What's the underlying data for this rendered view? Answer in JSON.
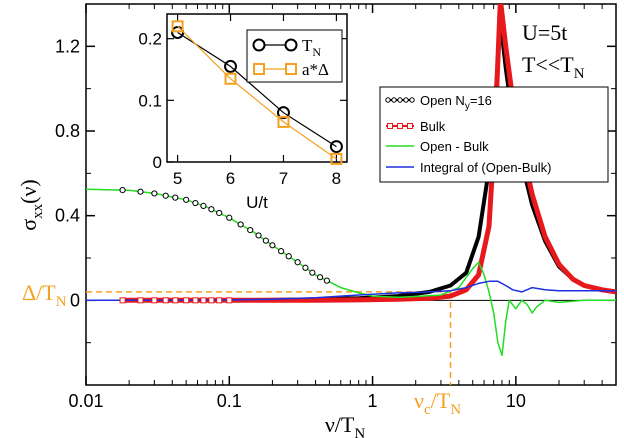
{
  "chart_data": {
    "type": "line",
    "x_scale": "log",
    "xlabel": "ν/T_N",
    "ylabel": "σ_xx(ν)",
    "xlim": [
      0.01,
      50
    ],
    "ylim": [
      -0.4,
      1.4
    ],
    "x_ticks": [
      {
        "value": 0.01,
        "label": "0.01"
      },
      {
        "value": 0.1,
        "label": "0.1"
      },
      {
        "value": 1,
        "label": "1"
      },
      {
        "value": 10,
        "label": "10"
      }
    ],
    "y_ticks": [
      {
        "value": 0,
        "label": "0"
      },
      {
        "value": 0.4,
        "label": "0.4"
      },
      {
        "value": 0.8,
        "label": "0.8"
      },
      {
        "value": 1.2,
        "label": "1.2"
      }
    ],
    "annotations": {
      "params_line1": "U=5t",
      "params_line2_main": "T<<T",
      "params_line2_sub": "N",
      "delta_main": "Δ/T",
      "delta_sub": "N",
      "nu_c_main": "ν",
      "nu_c_sub1": "c",
      "nu_c_mid": "/T",
      "nu_c_sub2": "N",
      "delta_value": 0.04,
      "nu_c_value": 3.5,
      "orange_color": "#f5a020"
    },
    "series": [
      {
        "name": "Open N_y=16",
        "color": "#000000",
        "x": [
          0.018,
          0.03,
          0.06,
          0.1,
          0.2,
          0.4,
          0.8,
          1.5,
          2.5,
          3.5,
          4.5,
          5.5,
          6.5,
          7.2,
          7.8,
          8.5,
          9.5,
          11,
          13,
          16,
          20,
          25,
          30,
          40,
          50
        ],
        "y": [
          0.0,
          0.0,
          0.0,
          0.0,
          0.002,
          0.005,
          0.01,
          0.02,
          0.04,
          0.07,
          0.13,
          0.3,
          0.62,
          0.95,
          1.32,
          1.1,
          0.85,
          0.65,
          0.45,
          0.28,
          0.16,
          0.1,
          0.07,
          0.05,
          0.04
        ]
      },
      {
        "name": "Bulk",
        "color": "#e8191c",
        "x": [
          0.018,
          0.03,
          0.06,
          0.1,
          0.2,
          0.4,
          0.8,
          1.5,
          2.5,
          3.5,
          4.5,
          5.5,
          6.5,
          7.2,
          7.8,
          8.5,
          9.5,
          11,
          13,
          16,
          20,
          25,
          30,
          40,
          50
        ],
        "y": [
          0.0,
          0.0,
          0.0,
          0.0,
          0.0,
          0.0,
          0.002,
          0.005,
          0.01,
          0.02,
          0.05,
          0.12,
          0.35,
          0.85,
          1.42,
          1.2,
          0.95,
          0.72,
          0.5,
          0.3,
          0.17,
          0.1,
          0.07,
          0.05,
          0.04
        ]
      },
      {
        "name": "Open - Bulk",
        "color": "#22dd22",
        "x": [
          0.01,
          0.02,
          0.03,
          0.05,
          0.07,
          0.1,
          0.15,
          0.2,
          0.3,
          0.4,
          0.6,
          0.8,
          1,
          1.5,
          2,
          3,
          4,
          5,
          5.5,
          6,
          6.5,
          7,
          7.5,
          8,
          8.5,
          9,
          10,
          11,
          12,
          13,
          14,
          16,
          20,
          30,
          50
        ],
        "y": [
          0.525,
          0.52,
          0.505,
          0.475,
          0.44,
          0.39,
          0.32,
          0.26,
          0.18,
          0.12,
          0.06,
          0.035,
          0.02,
          0.015,
          0.018,
          0.025,
          0.06,
          0.15,
          0.18,
          0.12,
          0.04,
          -0.06,
          -0.2,
          -0.26,
          -0.1,
          0.0,
          -0.04,
          0.0,
          -0.02,
          -0.06,
          -0.03,
          0.0,
          -0.01,
          0.0,
          0.0
        ]
      },
      {
        "name": "Integral of (Open-Bulk)",
        "color": "#1f2fe0",
        "x": [
          0.01,
          0.03,
          0.06,
          0.1,
          0.2,
          0.4,
          0.8,
          1.5,
          2.5,
          3.5,
          4.5,
          5.5,
          6.5,
          7.5,
          8.5,
          9.5,
          11,
          13,
          16,
          20,
          30,
          50
        ],
        "y": [
          0.0,
          0.0,
          0.001,
          0.002,
          0.005,
          0.012,
          0.025,
          0.035,
          0.04,
          0.045,
          0.06,
          0.08,
          0.09,
          0.09,
          0.07,
          0.05,
          0.04,
          0.06,
          0.05,
          0.045,
          0.045,
          0.045
        ]
      }
    ],
    "marker_points": {
      "open_x": [
        0.018,
        0.024,
        0.03,
        0.036,
        0.042,
        0.05,
        0.058,
        0.066,
        0.075,
        0.085,
        0.1,
        0.12,
        0.14,
        0.16,
        0.18,
        0.2,
        0.23,
        0.26,
        0.3,
        0.34,
        0.38,
        0.43,
        0.48
      ],
      "bulk_x": [
        0.018,
        0.024,
        0.03,
        0.036,
        0.042,
        0.05,
        0.058,
        0.066,
        0.075,
        0.085,
        0.1
      ]
    },
    "legend": {
      "position": "right"
    },
    "inset": {
      "xlabel": "U/t",
      "xlim": [
        4.8,
        8.2
      ],
      "ylim": [
        0,
        0.24
      ],
      "x_ticks": [
        {
          "value": 5,
          "label": "5"
        },
        {
          "value": 6,
          "label": "6"
        },
        {
          "value": 7,
          "label": "7"
        },
        {
          "value": 8,
          "label": "8"
        }
      ],
      "y_ticks": [
        {
          "value": 0,
          "label": "0"
        },
        {
          "value": 0.1,
          "label": "0.1"
        },
        {
          "value": 0.2,
          "label": "0.2"
        }
      ],
      "series": [
        {
          "name_main": "T",
          "name_sub": "N",
          "color": "#000000",
          "marker": "circle",
          "x": [
            5,
            6,
            7,
            8
          ],
          "y": [
            0.21,
            0.155,
            0.08,
            0.025
          ]
        },
        {
          "name_main": "a*Δ",
          "name_sub": "",
          "color": "#f5a020",
          "marker": "square",
          "x": [
            5,
            6,
            7,
            8
          ],
          "y": [
            0.22,
            0.135,
            0.065,
            0.005
          ]
        }
      ]
    }
  }
}
